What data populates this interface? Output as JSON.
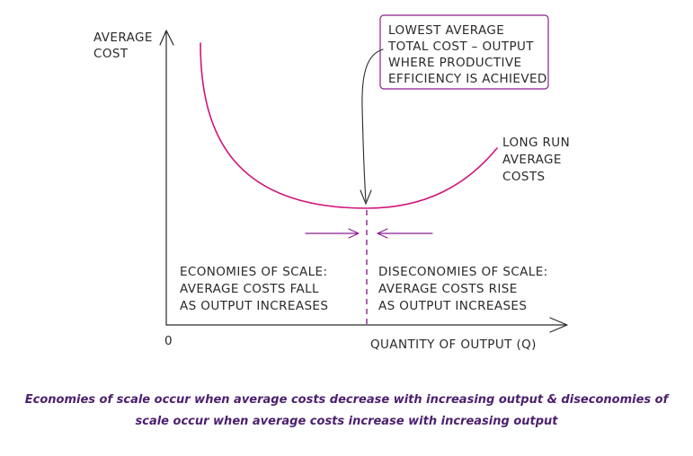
{
  "diagram": {
    "y_axis_label": [
      "AVERAGE",
      "COST"
    ],
    "x_axis_label": "QUANTITY OF OUTPUT (Q)",
    "origin_label": "0",
    "curve_label": [
      "LONG RUN",
      "AVERAGE",
      "COSTS"
    ],
    "callout": [
      "LOWEST AVERAGE",
      "TOTAL COST – OUTPUT",
      "WHERE PRODUCTIVE",
      "EFFICIENCY IS ACHIEVED"
    ],
    "left_region": [
      "ECONOMIES OF SCALE:",
      "AVERAGE COSTS FALL",
      "AS OUTPUT INCREASES"
    ],
    "right_region": [
      "DISECONOMIES OF SCALE:",
      "AVERAGE COSTS RISE",
      "AS OUTPUT INCREASES"
    ],
    "colors": {
      "curve": "#d1147a",
      "accent": "#8a1f8f",
      "ink": "#2a2a2a",
      "caption": "#4b1f6e"
    }
  },
  "caption": {
    "line1": "Economies of scale occur when average costs decrease with increasing output & diseconomies of",
    "line2": "scale occur when average costs increase with increasing output"
  }
}
